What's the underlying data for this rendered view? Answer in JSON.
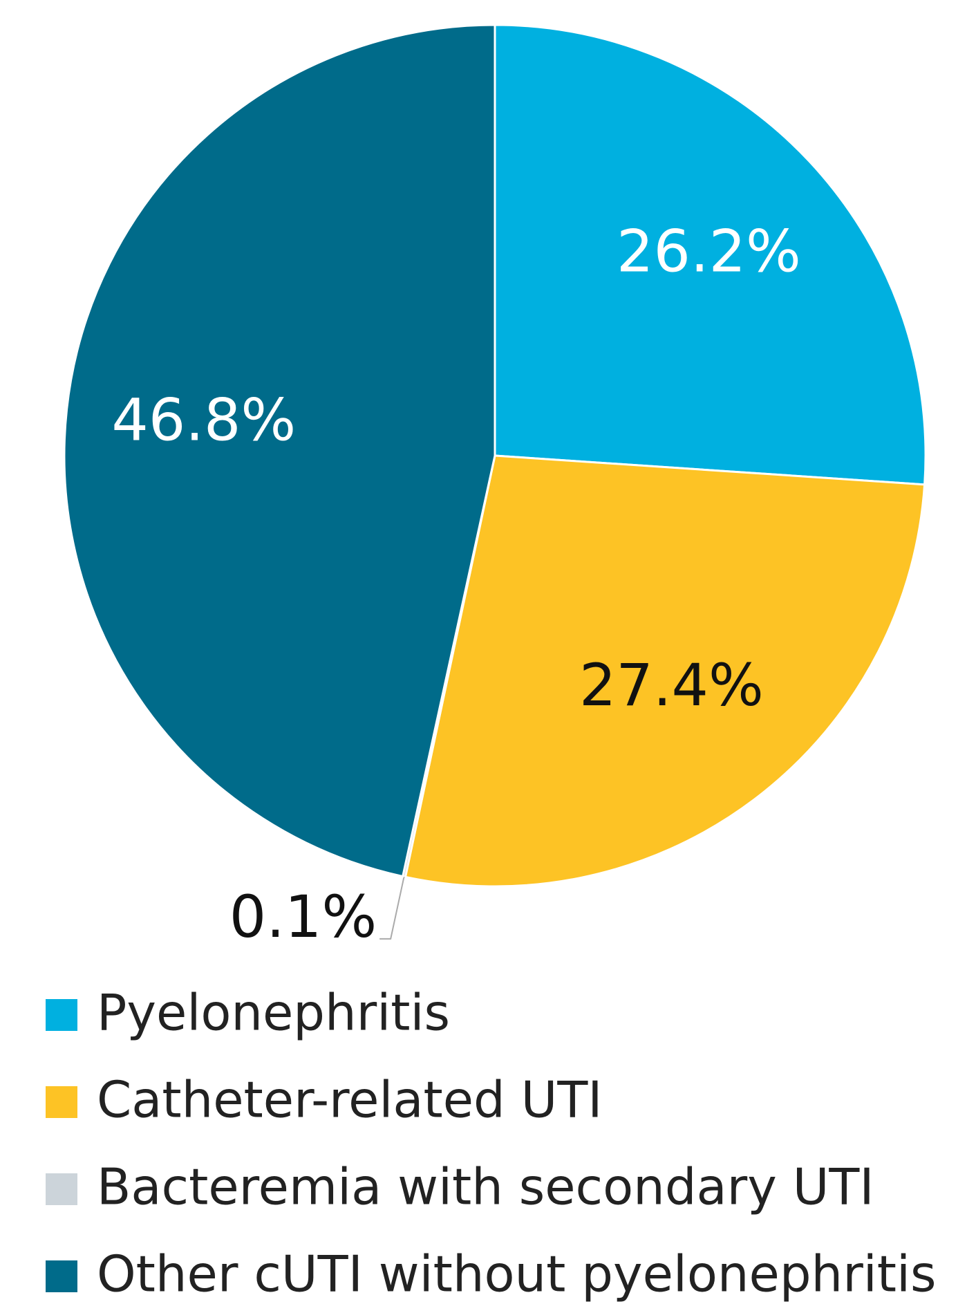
{
  "chart_data": {
    "type": "pie",
    "categories": [
      "Pyelonephritis",
      "Catheter-related UTI",
      "Bacteremia with secondary UTI",
      "Other cUTI without pyelonephritis"
    ],
    "values": [
      26.2,
      27.4,
      0.1,
      46.8
    ],
    "value_labels": [
      "26.2%",
      "27.4%",
      "0.1%",
      "46.8%"
    ],
    "colors": [
      "#00b0e0",
      "#fdc325",
      "#ccd4da",
      "#006b8a"
    ],
    "label_colors": [
      "#ffffff",
      "#111111",
      "#111111",
      "#ffffff"
    ],
    "legend": "bottom-left"
  }
}
